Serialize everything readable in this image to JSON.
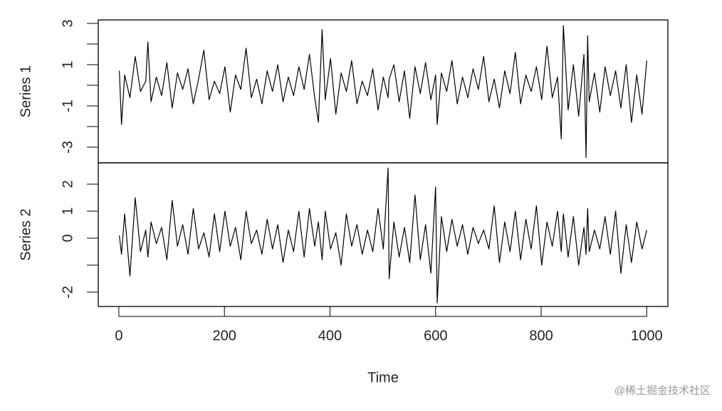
{
  "chart_data": {
    "type": "line",
    "xlabel": "Time",
    "xlim": [
      -39,
      1040
    ],
    "xticks": [
      0,
      200,
      400,
      600,
      800,
      1000
    ],
    "x": [
      1,
      5,
      11,
      21,
      31,
      41,
      51,
      55,
      61,
      71,
      81,
      91,
      101,
      111,
      121,
      131,
      141,
      151,
      161,
      171,
      181,
      191,
      201,
      211,
      221,
      231,
      241,
      251,
      261,
      271,
      281,
      291,
      301,
      311,
      321,
      331,
      341,
      351,
      361,
      371,
      378,
      385,
      391,
      401,
      411,
      421,
      431,
      441,
      451,
      461,
      471,
      481,
      491,
      501,
      510,
      512,
      521,
      531,
      541,
      551,
      561,
      571,
      581,
      591,
      600,
      603,
      611,
      621,
      631,
      641,
      651,
      661,
      671,
      681,
      691,
      701,
      711,
      721,
      731,
      741,
      751,
      761,
      771,
      781,
      791,
      801,
      811,
      821,
      831,
      838,
      842,
      851,
      861,
      871,
      881,
      885,
      888,
      891,
      901,
      911,
      921,
      931,
      941,
      951,
      961,
      971,
      981,
      991,
      1000
    ],
    "color": "#000000",
    "panels": [
      {
        "ylabel": "Series 1",
        "ylim": [
          -3.76,
          3.17
        ],
        "yticks": [
          {
            "value": -3,
            "label": "-3"
          },
          {
            "value": -2,
            "label": null
          },
          {
            "value": -1,
            "label": "-1"
          },
          {
            "value": 0,
            "label": null
          },
          {
            "value": 1,
            "label": "1"
          },
          {
            "value": 2,
            "label": null
          },
          {
            "value": 3,
            "label": "3"
          }
        ],
        "values": [
          0.7,
          -1.9,
          0.5,
          -0.6,
          1.4,
          -0.3,
          0.2,
          2.1,
          -0.8,
          0.4,
          -0.5,
          1.1,
          -1.1,
          0.6,
          -0.2,
          0.8,
          -0.9,
          0.3,
          1.7,
          -0.7,
          0.2,
          -0.4,
          0.9,
          -1.3,
          0.5,
          -0.2,
          1.8,
          -0.6,
          0.3,
          -0.9,
          0.7,
          -0.3,
          1.0,
          -0.8,
          0.4,
          -0.5,
          0.9,
          -0.2,
          1.5,
          -0.6,
          -1.8,
          2.7,
          -0.7,
          1.3,
          -1.4,
          0.6,
          -0.3,
          1.2,
          -0.9,
          0.2,
          -0.5,
          0.8,
          -1.2,
          0.4,
          -0.6,
          0.3,
          1.0,
          -0.8,
          0.7,
          -1.6,
          0.9,
          -0.4,
          1.1,
          -0.7,
          0.5,
          -1.9,
          0.6,
          -0.3,
          1.2,
          -0.9,
          0.4,
          -0.6,
          0.8,
          -0.2,
          1.4,
          -0.8,
          0.3,
          -1.1,
          0.7,
          -0.4,
          1.6,
          -0.9,
          0.5,
          -0.3,
          0.9,
          -0.7,
          1.9,
          -0.6,
          0.4,
          -2.6,
          2.9,
          -1.2,
          1.0,
          -1.5,
          1.5,
          -3.5,
          2.4,
          -0.8,
          0.6,
          -1.3,
          0.9,
          -0.5,
          0.7,
          -1.1,
          1.0,
          -1.8,
          0.5,
          -1.4,
          1.2
        ]
      },
      {
        "ylabel": "Series 2",
        "ylim": [
          -2.53,
          2.79
        ],
        "yticks": [
          {
            "value": -2,
            "label": "-2"
          },
          {
            "value": -1,
            "label": null
          },
          {
            "value": 0,
            "label": "0"
          },
          {
            "value": 1,
            "label": "1"
          },
          {
            "value": 2,
            "label": "2"
          }
        ],
        "values": [
          0.1,
          -0.6,
          0.9,
          -1.4,
          1.5,
          -0.5,
          0.3,
          -0.7,
          0.6,
          -0.2,
          0.4,
          -0.8,
          1.4,
          -0.3,
          0.5,
          -0.6,
          1.1,
          -0.4,
          0.2,
          -0.7,
          0.9,
          -0.5,
          1.0,
          -0.3,
          0.4,
          -0.8,
          1.0,
          -0.2,
          0.3,
          -0.6,
          0.7,
          -0.4,
          0.5,
          -0.9,
          0.3,
          -0.5,
          1.0,
          -0.7,
          1.1,
          -0.3,
          0.6,
          -0.8,
          1.0,
          -0.4,
          0.2,
          -1.0,
          0.9,
          -0.3,
          0.5,
          -0.6,
          0.3,
          -0.5,
          1.1,
          -0.4,
          2.6,
          -1.5,
          0.6,
          -0.7,
          0.4,
          -0.9,
          1.6,
          -0.8,
          0.5,
          -1.3,
          1.9,
          -2.4,
          0.8,
          -0.5,
          0.7,
          -0.3,
          0.5,
          -0.6,
          0.4,
          -0.2,
          0.3,
          -0.4,
          1.2,
          -0.9,
          0.6,
          -0.5,
          1.0,
          -0.8,
          0.7,
          -0.4,
          1.2,
          -1.0,
          0.6,
          -0.3,
          1.0,
          -0.5,
          0.9,
          -0.7,
          0.8,
          -1.0,
          0.4,
          -0.6,
          1.1,
          -0.5,
          0.3,
          -0.4,
          0.8,
          -0.6,
          1.0,
          -1.3,
          0.5,
          -0.9,
          0.6,
          -0.4,
          0.3
        ]
      }
    ]
  },
  "watermark": "@稀土掘金技术社区"
}
